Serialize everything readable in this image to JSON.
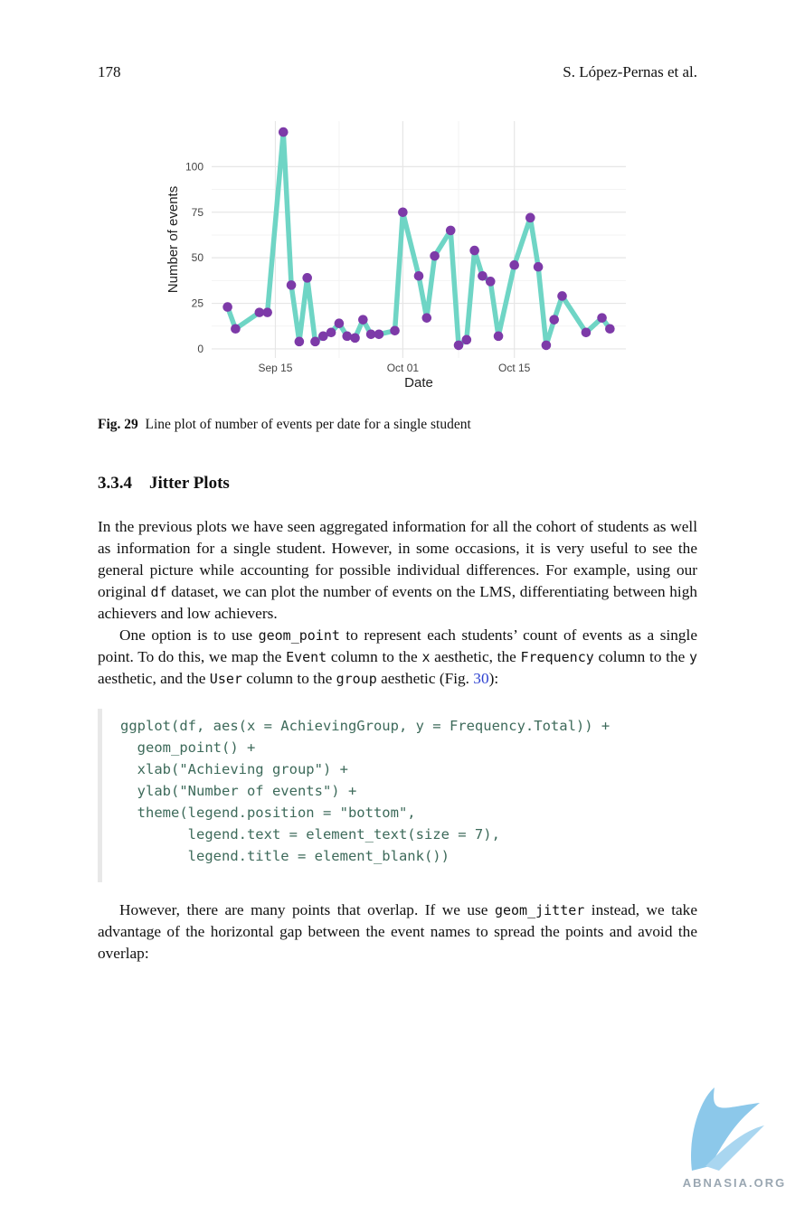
{
  "header": {
    "page_number": "178",
    "authors": "S. López-Pernas et al."
  },
  "chart_data": {
    "type": "line",
    "xlabel": "Date",
    "ylabel": "Number of events",
    "x": [
      "Sep 09",
      "Sep 10",
      "Sep 13",
      "Sep 14",
      "Sep 16",
      "Sep 17",
      "Sep 18",
      "Sep 19",
      "Sep 20",
      "Sep 21",
      "Sep 22",
      "Sep 23",
      "Sep 24",
      "Sep 25",
      "Sep 26",
      "Sep 27",
      "Sep 28",
      "Sep 30",
      "Oct 01",
      "Oct 03",
      "Oct 04",
      "Oct 05",
      "Oct 07",
      "Oct 08",
      "Oct 09",
      "Oct 10",
      "Oct 11",
      "Oct 12",
      "Oct 13",
      "Oct 15",
      "Oct 17",
      "Oct 18",
      "Oct 19",
      "Oct 20",
      "Oct 21",
      "Oct 24",
      "Oct 26",
      "Oct 27"
    ],
    "series": [
      {
        "color": "#6fd5c5",
        "point_color": "#7d3aa8",
        "values": [
          23,
          11,
          20,
          20,
          119,
          35,
          4,
          39,
          4,
          7,
          9,
          14,
          7,
          6,
          16,
          8,
          8,
          10,
          75,
          40,
          17,
          51,
          65,
          2,
          5,
          54,
          40,
          37,
          7,
          46,
          72,
          45,
          2,
          16,
          29,
          9,
          17,
          11
        ]
      }
    ],
    "xlim": [
      "Sep 07",
      "Oct 29"
    ],
    "xticks": [
      "Sep 15",
      "Oct 01",
      "Oct 15"
    ],
    "ylim": [
      -5,
      125
    ],
    "yticks": [
      0,
      25,
      50,
      75,
      100
    ],
    "grid": true
  },
  "caption": {
    "label": "Fig. 29",
    "text": "Line plot of number of events per date for a single student"
  },
  "section": {
    "number": "3.3.4",
    "title": "Jitter Plots"
  },
  "paragraphs": [
    [
      {
        "text": "In the previous plots we have seen aggregated information for all the cohort of students as well as information for a single student. However, in some occasions, it is very useful to see the general picture while accounting for possible individual differences. For example, using our original "
      },
      {
        "code": "df"
      },
      {
        "text": " dataset, we can plot the number of events on the LMS, differentiating between high achievers and low achievers."
      }
    ],
    [
      {
        "text": "One option is to use "
      },
      {
        "code": "geom_point"
      },
      {
        "text": " to represent each students’ count of events as a single point. To do this, we map the "
      },
      {
        "code": "Event"
      },
      {
        "text": " column to the "
      },
      {
        "code": "x"
      },
      {
        "text": " aesthetic, the "
      },
      {
        "code": "Frequency"
      },
      {
        "text": " column to the "
      },
      {
        "code": "y"
      },
      {
        "text": " aesthetic, and the "
      },
      {
        "code": "User"
      },
      {
        "text": " column to the "
      },
      {
        "code": "group"
      },
      {
        "text": " aesthetic (Fig. "
      },
      {
        "link": "30"
      },
      {
        "text": "):"
      }
    ]
  ],
  "code": [
    "ggplot(df, aes(x = AchievingGroup, y = Frequency.Total)) +",
    "  geom_point() +",
    "  xlab(\"Achieving group\") +",
    "  ylab(\"Number of events\") +",
    "  theme(legend.position = \"bottom\",",
    "        legend.text = element_text(size = 7),",
    "        legend.title = element_blank())"
  ],
  "closing": [
    {
      "text": "However, there are many points that overlap. If we use "
    },
    {
      "code": "geom_jitter"
    },
    {
      "text": " instead, we take advantage of the horizontal gap between the event names to spread the points and avoid the overlap:"
    }
  ],
  "watermark": "ABNASIA.ORG"
}
